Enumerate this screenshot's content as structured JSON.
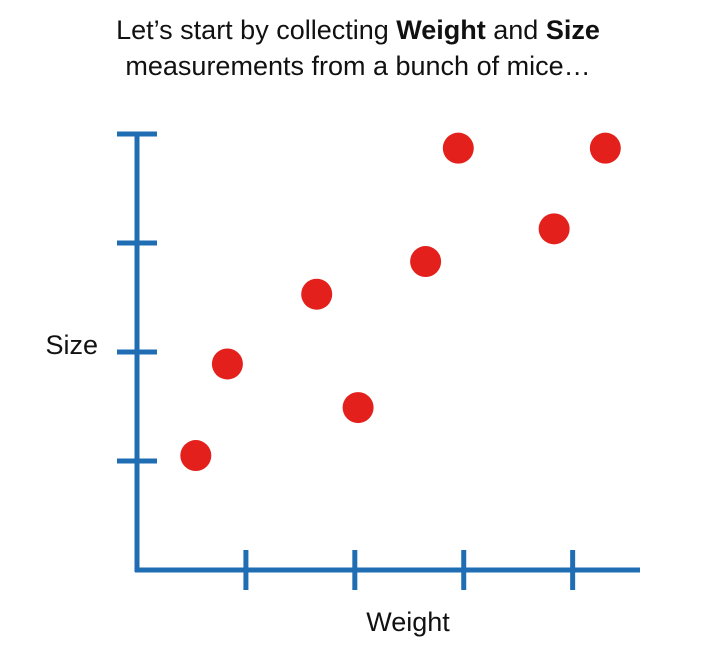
{
  "chart_data": {
    "type": "scatter",
    "title": {
      "line1": [
        "Let’s start by collecting ",
        "Weight",
        " and ",
        "Size"
      ],
      "line2": "measurements from a bunch of mice…"
    },
    "xlabel": "Weight",
    "ylabel": "Size",
    "x": [
      0.54,
      0.83,
      1.65,
      2.03,
      2.65,
      2.95,
      3.83,
      4.3
    ],
    "values": [
      1.05,
      1.89,
      2.53,
      1.49,
      2.83,
      3.87,
      3.13,
      3.87
    ],
    "color": "#e3201c",
    "axis_color": "#1f6db3",
    "xlim": [
      0,
      4.6
    ],
    "ylim": [
      0,
      4
    ],
    "xticks": [
      1,
      2,
      3,
      4
    ],
    "yticks": [
      1,
      2,
      3,
      4
    ]
  }
}
